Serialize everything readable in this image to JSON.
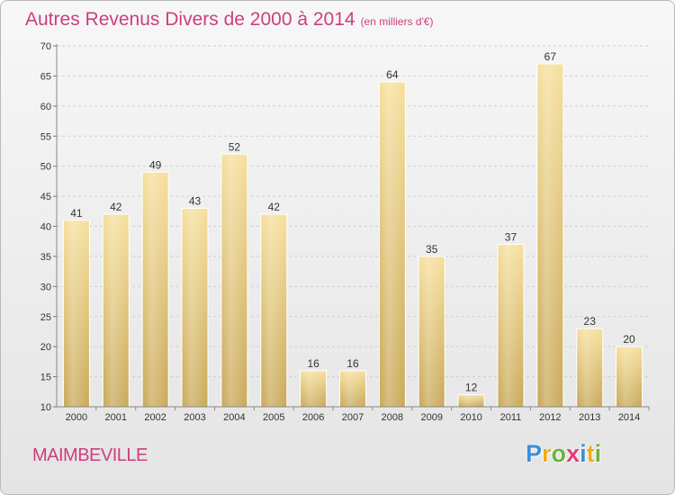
{
  "chart": {
    "title": "Autres Revenus Divers de 2000 à 2014",
    "subtitle": "(en milliers d'€)",
    "commune": "MAIMBEVILLE",
    "logo": {
      "letters": [
        "P",
        "r",
        "o",
        "x",
        "i",
        "t",
        "i"
      ],
      "colors": [
        "#3a8fd9",
        "#f2a81d",
        "#6cb33f",
        "#e23b7f",
        "#3a8fd9",
        "#f2a81d",
        "#6cb33f"
      ]
    }
  },
  "chart_data": {
    "type": "bar",
    "categories": [
      "2000",
      "2001",
      "2002",
      "2003",
      "2004",
      "2005",
      "2006",
      "2007",
      "2008",
      "2009",
      "2010",
      "2011",
      "2012",
      "2013",
      "2014"
    ],
    "values": [
      41,
      42,
      49,
      43,
      52,
      42,
      16,
      16,
      64,
      35,
      12,
      37,
      67,
      23,
      20
    ],
    "ylim": [
      10,
      70
    ],
    "yticks": [
      10,
      15,
      20,
      25,
      30,
      35,
      40,
      45,
      50,
      55,
      60,
      65,
      70
    ],
    "grid": true,
    "bar_color": "#e8cd86",
    "legend": "none"
  }
}
